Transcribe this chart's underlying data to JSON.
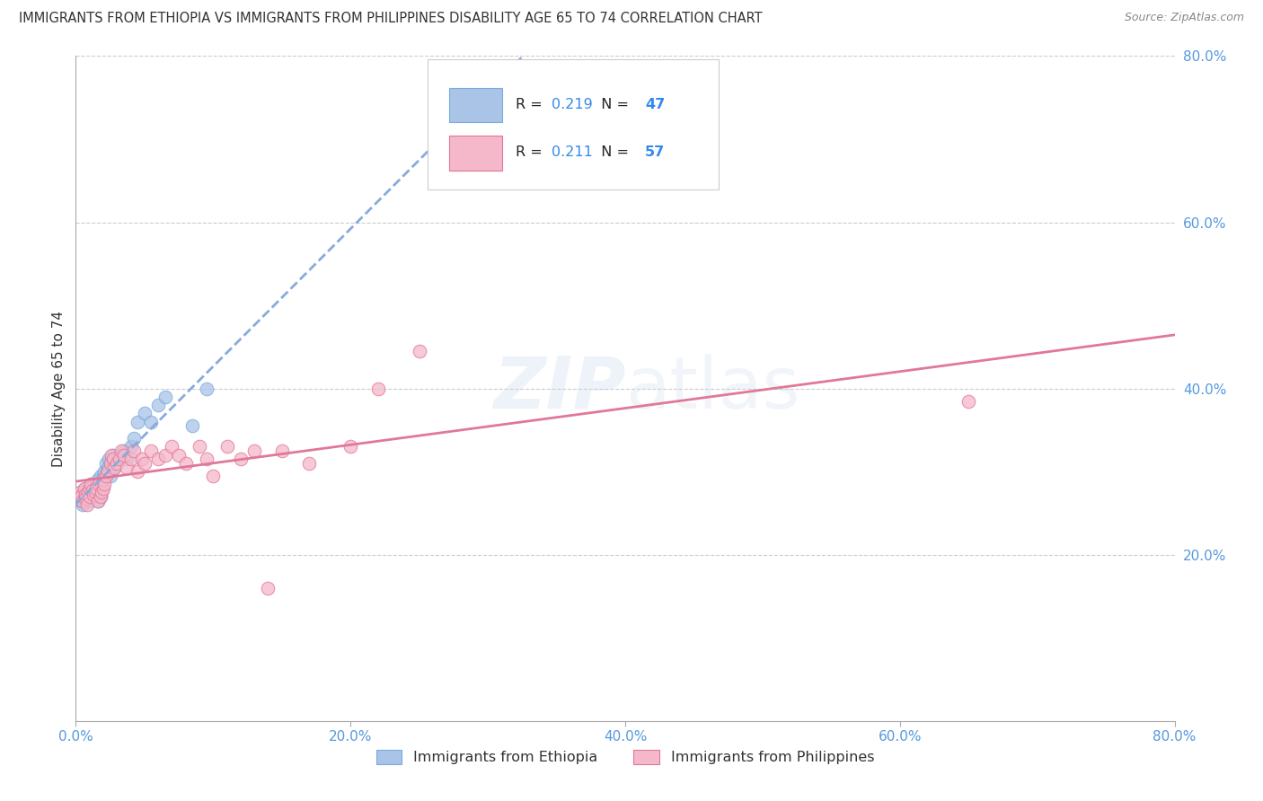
{
  "title": "IMMIGRANTS FROM ETHIOPIA VS IMMIGRANTS FROM PHILIPPINES DISABILITY AGE 65 TO 74 CORRELATION CHART",
  "source": "Source: ZipAtlas.com",
  "ylabel": "Disability Age 65 to 74",
  "xlim": [
    0.0,
    0.8
  ],
  "ylim": [
    0.0,
    0.8
  ],
  "xtick_labels": [
    "0.0%",
    "",
    "20.0%",
    "",
    "40.0%",
    "",
    "60.0%",
    "",
    "80.0%"
  ],
  "xtick_vals": [
    0.0,
    0.1,
    0.2,
    0.3,
    0.4,
    0.5,
    0.6,
    0.7,
    0.8
  ],
  "ytick_labels": [
    "20.0%",
    "40.0%",
    "60.0%",
    "80.0%"
  ],
  "ytick_vals": [
    0.2,
    0.4,
    0.6,
    0.8
  ],
  "ethiopia_color": "#aac4e8",
  "ethiopia_edge": "#7aaadd",
  "philippines_color": "#f5b8ca",
  "philippines_edge": "#e07898",
  "trend_ethiopia_color": "#88aadd",
  "trend_philippines_color": "#e07898",
  "legend_R1": "0.219",
  "legend_N1": "47",
  "legend_R2": "0.211",
  "legend_N2": "57",
  "watermark": "ZIPatlas",
  "ethiopia_x": [
    0.003,
    0.004,
    0.005,
    0.005,
    0.006,
    0.006,
    0.007,
    0.008,
    0.008,
    0.009,
    0.01,
    0.01,
    0.011,
    0.012,
    0.012,
    0.013,
    0.014,
    0.015,
    0.015,
    0.016,
    0.016,
    0.017,
    0.018,
    0.018,
    0.019,
    0.02,
    0.021,
    0.022,
    0.023,
    0.024,
    0.025,
    0.026,
    0.027,
    0.028,
    0.03,
    0.032,
    0.035,
    0.037,
    0.04,
    0.042,
    0.045,
    0.05,
    0.055,
    0.06,
    0.065,
    0.085,
    0.095
  ],
  "ethiopia_y": [
    0.27,
    0.265,
    0.275,
    0.26,
    0.27,
    0.275,
    0.28,
    0.272,
    0.268,
    0.265,
    0.275,
    0.28,
    0.285,
    0.27,
    0.278,
    0.275,
    0.272,
    0.28,
    0.285,
    0.265,
    0.29,
    0.275,
    0.295,
    0.27,
    0.285,
    0.295,
    0.3,
    0.31,
    0.305,
    0.315,
    0.295,
    0.31,
    0.32,
    0.305,
    0.31,
    0.32,
    0.325,
    0.315,
    0.33,
    0.34,
    0.36,
    0.37,
    0.36,
    0.38,
    0.39,
    0.355,
    0.4
  ],
  "philippines_x": [
    0.003,
    0.004,
    0.005,
    0.006,
    0.007,
    0.007,
    0.008,
    0.009,
    0.01,
    0.01,
    0.011,
    0.012,
    0.013,
    0.014,
    0.015,
    0.016,
    0.017,
    0.018,
    0.019,
    0.02,
    0.02,
    0.021,
    0.022,
    0.023,
    0.025,
    0.026,
    0.027,
    0.028,
    0.03,
    0.032,
    0.033,
    0.035,
    0.037,
    0.04,
    0.042,
    0.045,
    0.048,
    0.05,
    0.055,
    0.06,
    0.065,
    0.07,
    0.075,
    0.08,
    0.09,
    0.095,
    0.1,
    0.11,
    0.12,
    0.13,
    0.14,
    0.15,
    0.17,
    0.2,
    0.22,
    0.25,
    0.65
  ],
  "philippines_y": [
    0.275,
    0.27,
    0.265,
    0.28,
    0.272,
    0.268,
    0.26,
    0.275,
    0.27,
    0.28,
    0.285,
    0.278,
    0.272,
    0.275,
    0.28,
    0.265,
    0.285,
    0.27,
    0.275,
    0.28,
    0.29,
    0.285,
    0.295,
    0.3,
    0.31,
    0.32,
    0.315,
    0.305,
    0.31,
    0.315,
    0.325,
    0.32,
    0.305,
    0.315,
    0.325,
    0.3,
    0.315,
    0.31,
    0.325,
    0.315,
    0.32,
    0.33,
    0.32,
    0.31,
    0.33,
    0.315,
    0.295,
    0.33,
    0.315,
    0.325,
    0.16,
    0.325,
    0.31,
    0.33,
    0.4,
    0.445,
    0.385
  ],
  "background_color": "#ffffff",
  "grid_color": "#cccccc",
  "tick_color": "#5599dd"
}
